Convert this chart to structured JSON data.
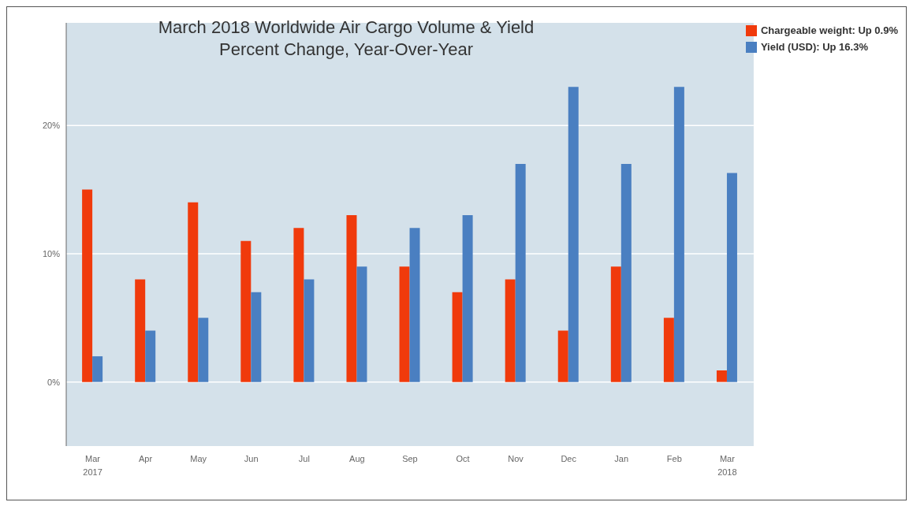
{
  "chart_data": {
    "type": "bar",
    "title": "March 2018 Worldwide Air Cargo Volume & Yield\nPercent Change, Year-Over-Year",
    "categories": [
      "Mar\n2017",
      "Apr",
      "May",
      "Jun",
      "Jul",
      "Aug",
      "Sep",
      "Oct",
      "Nov",
      "Dec",
      "Jan",
      "Feb",
      "Mar\n2018"
    ],
    "series": [
      {
        "name": "Chargeable weight: Up 0.9%",
        "color": "#f03a0c",
        "values": [
          15,
          8,
          14,
          11,
          12,
          13,
          9,
          7,
          8,
          4,
          9,
          5,
          0.9
        ]
      },
      {
        "name": "Yield (USD): Up 16.3%",
        "color": "#4a7fc1",
        "values": [
          2,
          4,
          5,
          7,
          8,
          9,
          12,
          13,
          17,
          23,
          17,
          23,
          16.3
        ]
      }
    ],
    "ylim": [
      -5,
      28
    ],
    "yticks": [
      {
        "value": 0,
        "label": "0%"
      },
      {
        "value": 10,
        "label": "10%"
      },
      {
        "value": 20,
        "label": "20%"
      }
    ],
    "grid": "y",
    "legend": "top right"
  }
}
